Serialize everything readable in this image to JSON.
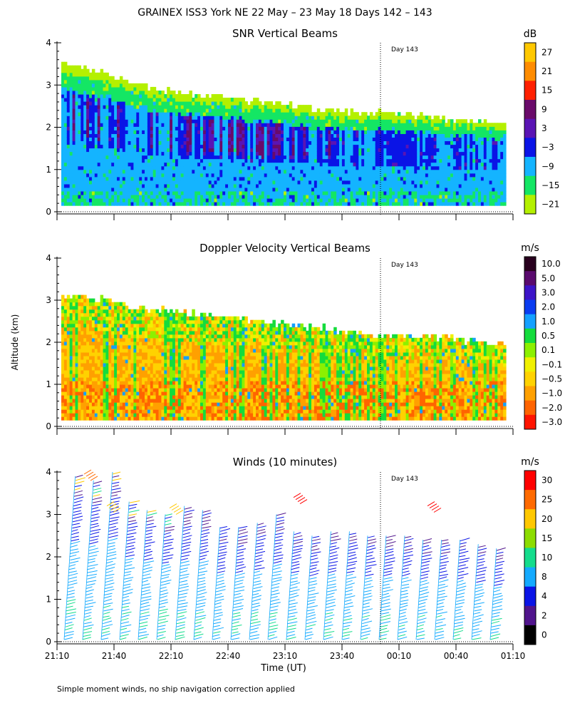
{
  "title": "GRAINEX ISS3 York NE  22 May – 23 May 18 Days 142 – 143",
  "footnote": "Simple moment winds, no ship navigation correction applied",
  "shared_axes": {
    "ylabel": "Altitude (km)",
    "xlabel": "Time (UT)",
    "x_ticks": [
      "21:10",
      "21:40",
      "22:10",
      "22:40",
      "23:10",
      "23:40",
      "00:10",
      "00:40",
      "01:10"
    ],
    "y_ticks": [
      "0",
      "1",
      "2",
      "3",
      "4"
    ],
    "day_marker": "Day 143"
  },
  "chart_data": [
    {
      "type": "heatmap",
      "title": "SNR Vertical Beams",
      "colorbar_unit": "dB",
      "colorbar_labels": [
        "27",
        "21",
        "15",
        "9",
        "3",
        "−3",
        "−9",
        "−15",
        "−21"
      ],
      "colorbar_colors": [
        "#ffc800",
        "#ff8c00",
        "#ff2000",
        "#6a0a6a",
        "#5a14b4",
        "#0a14e6",
        "#14b4ff",
        "#14e664",
        "#b4f000"
      ],
      "ylim": [
        0,
        4
      ],
      "x_range": [
        "21:10",
        "01:10"
      ],
      "top_altitude_km_profile": [
        3.5,
        3.3,
        3.0,
        2.8,
        2.7,
        2.6,
        2.5,
        2.4,
        2.3,
        2.3,
        2.2,
        2.1,
        2.1
      ]
    },
    {
      "type": "heatmap",
      "title": "Doppler Velocity Vertical Beams",
      "colorbar_unit": "m/s",
      "colorbar_labels": [
        "10.0",
        "5.0",
        "3.0",
        "2.0",
        "1.0",
        "0.5",
        "0.1",
        "−0.1",
        "−0.5",
        "−1.0",
        "−2.0",
        "−3.0"
      ],
      "colorbar_colors": [
        "#28001e",
        "#5a0a6e",
        "#3c14c8",
        "#0a3cf0",
        "#14a0ff",
        "#14dc3c",
        "#8cf000",
        "#f0f000",
        "#ffd200",
        "#ffa000",
        "#ff6400",
        "#ff1400"
      ],
      "ylim": [
        0,
        4
      ],
      "x_range": [
        "21:10",
        "01:10"
      ],
      "top_altitude_km_profile": [
        3.1,
        3.0,
        2.8,
        2.7,
        2.6,
        2.5,
        2.4,
        2.3,
        2.2,
        2.1,
        2.1,
        2.0,
        1.9
      ]
    },
    {
      "type": "scatter",
      "title": "Winds (10 minutes)",
      "colorbar_unit": "m/s",
      "colorbar_labels": [
        "30",
        "25",
        "20",
        "15",
        "10",
        "8",
        "4",
        "2",
        "0"
      ],
      "colorbar_colors": [
        "#ff0000",
        "#ff6a00",
        "#ffc800",
        "#8cdc00",
        "#14dc8c",
        "#14aaff",
        "#0a14e6",
        "#50148c",
        "#000000"
      ],
      "ylim": [
        0,
        4
      ],
      "profile_count": 24,
      "profile_top_altitude_km": [
        3.9,
        3.8,
        4.0,
        3.3,
        3.1,
        3.0,
        3.2,
        3.1,
        2.7,
        2.7,
        2.8,
        3.0,
        2.6,
        2.5,
        2.6,
        2.6,
        2.5,
        2.5,
        2.5,
        2.4,
        2.4,
        2.4,
        2.3,
        2.2
      ]
    }
  ]
}
